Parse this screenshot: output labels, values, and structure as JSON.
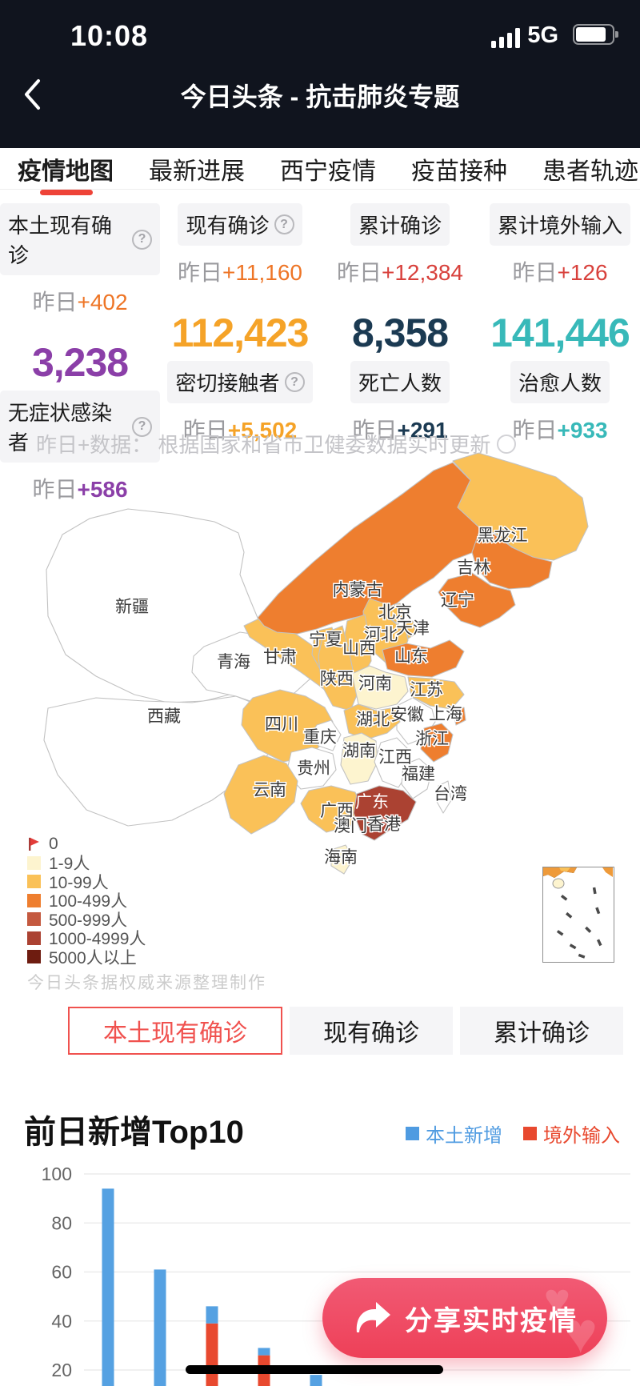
{
  "status_bar": {
    "time": "10:08",
    "network": "5G",
    "signal_icon": "signal-bars-4",
    "battery_icon": "battery-80"
  },
  "nav": {
    "title": "今日头条 - 抗击肺炎专题",
    "back_icon": "chevron-left"
  },
  "tabs": [
    {
      "label": "疫情地图",
      "active": true
    },
    {
      "label": "最新进展",
      "active": false
    },
    {
      "label": "西宁疫情",
      "active": false
    },
    {
      "label": "疫苗接种",
      "active": false
    },
    {
      "label": "患者轨迹",
      "active": false
    }
  ],
  "icons": {
    "help": "?"
  },
  "stats": {
    "columns": [
      {
        "top_label": "本土现有确诊",
        "top_help": true,
        "delta_prefix": "昨日",
        "top_delta": "+402",
        "top_delta_color": "#ee7526",
        "value": "3,238",
        "value_color": "#8b3fa8",
        "bottom_label": "无症状感染者",
        "bottom_help": true,
        "bottom_delta": "+586",
        "bottom_delta_color": "#8b3fa8"
      },
      {
        "top_label": "现有确诊",
        "top_help": true,
        "delta_prefix": "昨日",
        "top_delta": "+11,160",
        "top_delta_color": "#ee7526",
        "value": "112,423",
        "value_color": "#f5a328",
        "bottom_label": "密切接触者",
        "bottom_help": true,
        "bottom_delta": "+5,502",
        "bottom_delta_color": "#f5a328"
      },
      {
        "top_label": "累计确诊",
        "top_help": false,
        "delta_prefix": "昨日",
        "top_delta": "+12,384",
        "top_delta_color": "#d8413c",
        "value": "8,358",
        "value_color": "#1b3a52",
        "bottom_label": "死亡人数",
        "bottom_help": false,
        "bottom_delta": "+291",
        "bottom_delta_color": "#1b3a52"
      },
      {
        "top_label": "累计境外输入",
        "top_help": false,
        "delta_prefix": "昨日",
        "top_delta": "+126",
        "top_delta_color": "#d8413c",
        "value": "141,446",
        "value_color": "#38b9b9",
        "bottom_label": "治愈人数",
        "bottom_help": false,
        "bottom_delta": "+933",
        "bottom_delta_color": "#38b9b9"
      }
    ],
    "note": "昨日+数据： 根据国家和省市卫健委数据实时更新"
  },
  "map": {
    "legend": [
      {
        "label": "0",
        "type": "flag",
        "color": "#e23c39"
      },
      {
        "label": "1-9人",
        "type": "square",
        "color": "#fdf4cf"
      },
      {
        "label": "10-99人",
        "type": "square",
        "color": "#fac158"
      },
      {
        "label": "100-499人",
        "type": "square",
        "color": "#ee7e2f"
      },
      {
        "label": "500-999人",
        "type": "square",
        "color": "#c4593f"
      },
      {
        "label": "1000-4999人",
        "type": "square",
        "color": "#ab4232"
      },
      {
        "label": "5000人以上",
        "type": "square",
        "color": "#6e1c10"
      }
    ],
    "attribution": "今日头条据权威来源整理制作",
    "provinces": [
      {
        "name": "新疆",
        "level": "0"
      },
      {
        "name": "西藏",
        "level": "0"
      },
      {
        "name": "青海",
        "level": "0"
      },
      {
        "name": "甘肃",
        "level": "10-99人"
      },
      {
        "name": "宁夏",
        "level": "10-99人"
      },
      {
        "name": "内蒙古",
        "level": "100-499人"
      },
      {
        "name": "黑龙江",
        "level": "10-99人"
      },
      {
        "name": "吉林",
        "level": "100-499人"
      },
      {
        "name": "辽宁",
        "level": "100-499人"
      },
      {
        "name": "北京",
        "level": "10-99人"
      },
      {
        "name": "天津",
        "level": "10-99人"
      },
      {
        "name": "河北",
        "level": "10-99人"
      },
      {
        "name": "山西",
        "level": "10-99人"
      },
      {
        "name": "山东",
        "level": "100-499人"
      },
      {
        "name": "陕西",
        "level": "10-99人"
      },
      {
        "name": "河南",
        "level": "1-9人"
      },
      {
        "name": "江苏",
        "level": "10-99人"
      },
      {
        "name": "安徽",
        "level": "0"
      },
      {
        "name": "上海",
        "level": "100-499人"
      },
      {
        "name": "湖北",
        "level": "10-99人"
      },
      {
        "name": "四川",
        "level": "10-99人"
      },
      {
        "name": "重庆",
        "level": "0"
      },
      {
        "name": "浙江",
        "level": "100-499人"
      },
      {
        "name": "湖南",
        "level": "1-9人"
      },
      {
        "name": "江西",
        "level": "0"
      },
      {
        "name": "贵州",
        "level": "0"
      },
      {
        "name": "福建",
        "level": "0"
      },
      {
        "name": "云南",
        "level": "10-99人"
      },
      {
        "name": "广西",
        "level": "10-99人"
      },
      {
        "name": "广东",
        "level": "1000-4999人"
      },
      {
        "name": "海南",
        "level": "1-9人"
      },
      {
        "name": "台湾",
        "level": "0"
      },
      {
        "name": "香港",
        "level": null
      },
      {
        "name": "澳门",
        "level": null
      }
    ]
  },
  "map_buttons": [
    {
      "label": "本土现有确诊",
      "active": true
    },
    {
      "label": "现有确诊",
      "active": false
    },
    {
      "label": "累计确诊",
      "active": false
    }
  ],
  "chart_data": {
    "type": "bar",
    "stacked": true,
    "title": "前日新增Top10",
    "legend": [
      {
        "label": "本土新增",
        "color": "#4f9be1"
      },
      {
        "label": "境外输入",
        "color": "#e8492f"
      }
    ],
    "y_ticks": [
      100,
      80,
      60,
      40,
      20
    ],
    "ylim": [
      0,
      100
    ],
    "grid": true,
    "series": [
      {
        "name": "本土新增",
        "color": "#55a1e2",
        "values": [
          94,
          61,
          7,
          3,
          18
        ]
      },
      {
        "name": "境外输入",
        "color": "#e8492f",
        "values": [
          0,
          0,
          39,
          26,
          0
        ]
      }
    ]
  },
  "share_button": {
    "label": "分享实时疫情",
    "icon": "share-arrow",
    "color": "#ee4058"
  }
}
